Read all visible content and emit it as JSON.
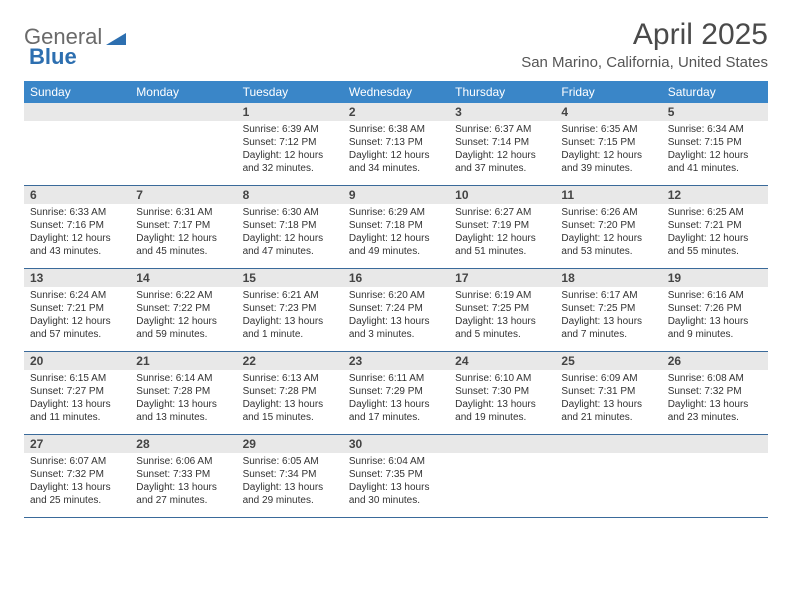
{
  "logo": {
    "text1": "General",
    "text2": "Blue"
  },
  "title": "April 2025",
  "location": "San Marino, California, United States",
  "colors": {
    "header_bg": "#3a86c8",
    "header_text": "#ffffff",
    "daynum_bg": "#e8e8e8",
    "week_border": "#3a6a9a",
    "text": "#333333",
    "logo_gray": "#6a6a6a",
    "logo_blue": "#2d6fb0"
  },
  "typography": {
    "title_fontsize": 30,
    "location_fontsize": 15,
    "weekday_fontsize": 12,
    "daynum_fontsize": 12,
    "cell_fontsize": 10
  },
  "weekdays": [
    "Sunday",
    "Monday",
    "Tuesday",
    "Wednesday",
    "Thursday",
    "Friday",
    "Saturday"
  ],
  "weeks": [
    [
      {
        "empty": true
      },
      {
        "empty": true
      },
      {
        "num": "1",
        "sunrise": "6:39 AM",
        "sunset": "7:12 PM",
        "daylight": "12 hours and 32 minutes."
      },
      {
        "num": "2",
        "sunrise": "6:38 AM",
        "sunset": "7:13 PM",
        "daylight": "12 hours and 34 minutes."
      },
      {
        "num": "3",
        "sunrise": "6:37 AM",
        "sunset": "7:14 PM",
        "daylight": "12 hours and 37 minutes."
      },
      {
        "num": "4",
        "sunrise": "6:35 AM",
        "sunset": "7:15 PM",
        "daylight": "12 hours and 39 minutes."
      },
      {
        "num": "5",
        "sunrise": "6:34 AM",
        "sunset": "7:15 PM",
        "daylight": "12 hours and 41 minutes."
      }
    ],
    [
      {
        "num": "6",
        "sunrise": "6:33 AM",
        "sunset": "7:16 PM",
        "daylight": "12 hours and 43 minutes."
      },
      {
        "num": "7",
        "sunrise": "6:31 AM",
        "sunset": "7:17 PM",
        "daylight": "12 hours and 45 minutes."
      },
      {
        "num": "8",
        "sunrise": "6:30 AM",
        "sunset": "7:18 PM",
        "daylight": "12 hours and 47 minutes."
      },
      {
        "num": "9",
        "sunrise": "6:29 AM",
        "sunset": "7:18 PM",
        "daylight": "12 hours and 49 minutes."
      },
      {
        "num": "10",
        "sunrise": "6:27 AM",
        "sunset": "7:19 PM",
        "daylight": "12 hours and 51 minutes."
      },
      {
        "num": "11",
        "sunrise": "6:26 AM",
        "sunset": "7:20 PM",
        "daylight": "12 hours and 53 minutes."
      },
      {
        "num": "12",
        "sunrise": "6:25 AM",
        "sunset": "7:21 PM",
        "daylight": "12 hours and 55 minutes."
      }
    ],
    [
      {
        "num": "13",
        "sunrise": "6:24 AM",
        "sunset": "7:21 PM",
        "daylight": "12 hours and 57 minutes."
      },
      {
        "num": "14",
        "sunrise": "6:22 AM",
        "sunset": "7:22 PM",
        "daylight": "12 hours and 59 minutes."
      },
      {
        "num": "15",
        "sunrise": "6:21 AM",
        "sunset": "7:23 PM",
        "daylight": "13 hours and 1 minute."
      },
      {
        "num": "16",
        "sunrise": "6:20 AM",
        "sunset": "7:24 PM",
        "daylight": "13 hours and 3 minutes."
      },
      {
        "num": "17",
        "sunrise": "6:19 AM",
        "sunset": "7:25 PM",
        "daylight": "13 hours and 5 minutes."
      },
      {
        "num": "18",
        "sunrise": "6:17 AM",
        "sunset": "7:25 PM",
        "daylight": "13 hours and 7 minutes."
      },
      {
        "num": "19",
        "sunrise": "6:16 AM",
        "sunset": "7:26 PM",
        "daylight": "13 hours and 9 minutes."
      }
    ],
    [
      {
        "num": "20",
        "sunrise": "6:15 AM",
        "sunset": "7:27 PM",
        "daylight": "13 hours and 11 minutes."
      },
      {
        "num": "21",
        "sunrise": "6:14 AM",
        "sunset": "7:28 PM",
        "daylight": "13 hours and 13 minutes."
      },
      {
        "num": "22",
        "sunrise": "6:13 AM",
        "sunset": "7:28 PM",
        "daylight": "13 hours and 15 minutes."
      },
      {
        "num": "23",
        "sunrise": "6:11 AM",
        "sunset": "7:29 PM",
        "daylight": "13 hours and 17 minutes."
      },
      {
        "num": "24",
        "sunrise": "6:10 AM",
        "sunset": "7:30 PM",
        "daylight": "13 hours and 19 minutes."
      },
      {
        "num": "25",
        "sunrise": "6:09 AM",
        "sunset": "7:31 PM",
        "daylight": "13 hours and 21 minutes."
      },
      {
        "num": "26",
        "sunrise": "6:08 AM",
        "sunset": "7:32 PM",
        "daylight": "13 hours and 23 minutes."
      }
    ],
    [
      {
        "num": "27",
        "sunrise": "6:07 AM",
        "sunset": "7:32 PM",
        "daylight": "13 hours and 25 minutes."
      },
      {
        "num": "28",
        "sunrise": "6:06 AM",
        "sunset": "7:33 PM",
        "daylight": "13 hours and 27 minutes."
      },
      {
        "num": "29",
        "sunrise": "6:05 AM",
        "sunset": "7:34 PM",
        "daylight": "13 hours and 29 minutes."
      },
      {
        "num": "30",
        "sunrise": "6:04 AM",
        "sunset": "7:35 PM",
        "daylight": "13 hours and 30 minutes."
      },
      {
        "empty": true
      },
      {
        "empty": true
      },
      {
        "empty": true
      }
    ]
  ],
  "labels": {
    "sunrise": "Sunrise:",
    "sunset": "Sunset:",
    "daylight": "Daylight:"
  }
}
